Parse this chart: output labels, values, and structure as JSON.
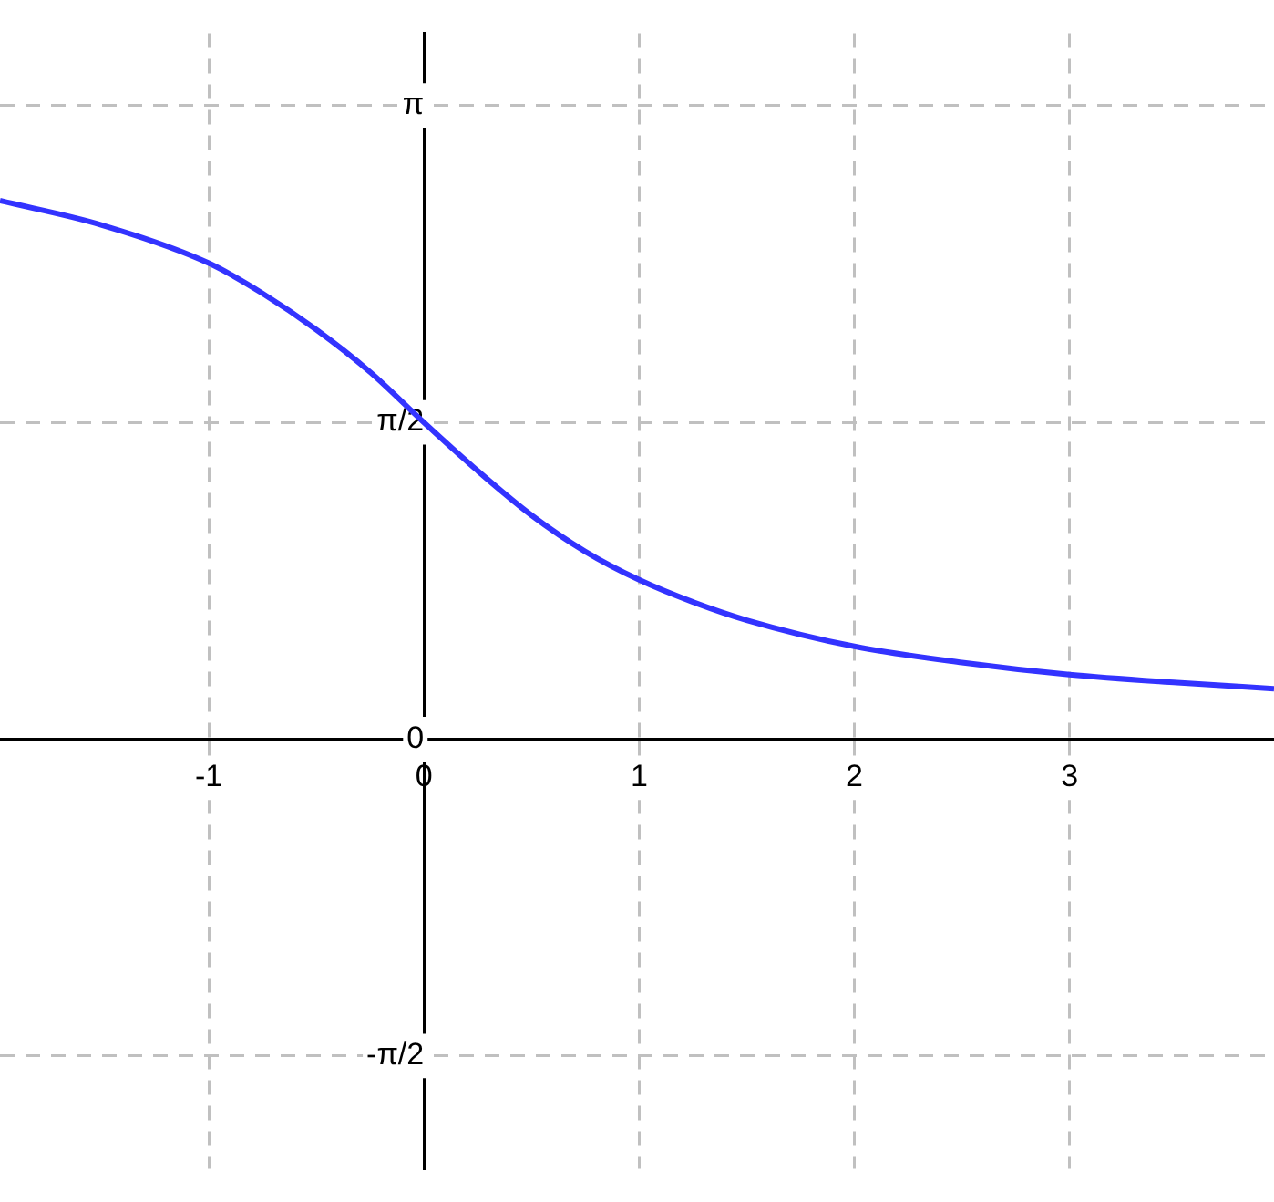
{
  "chart_data": {
    "type": "line",
    "x": [
      -1.97,
      -1.5,
      -1,
      -0.75,
      -0.5,
      -0.25,
      0,
      0.25,
      0.5,
      0.75,
      1,
      1.25,
      1.5,
      2,
      2.5,
      3,
      3.5,
      3.95
    ],
    "series": [
      {
        "color": "#3333ff",
        "values": [
          2.67,
          2.55,
          2.36,
          2.21,
          2.03,
          1.82,
          1.57,
          1.33,
          1.11,
          0.93,
          0.79,
          0.68,
          0.59,
          0.46,
          0.38,
          0.32,
          0.28,
          0.25
        ]
      }
    ],
    "xlim": [
      -1.97,
      3.95
    ],
    "ylim": [
      -2.13,
      3.5
    ],
    "xticks": [
      -1,
      0,
      1,
      2,
      3
    ],
    "yticks": [
      {
        "value": -1.5708,
        "label": "-π/2"
      },
      {
        "value": 0,
        "label": "0"
      },
      {
        "value": 1.5708,
        "label": "π/2"
      },
      {
        "value": 3.1416,
        "label": "π"
      }
    ],
    "grid": true,
    "marker": "none",
    "line_style": "solid",
    "legend": false
  }
}
